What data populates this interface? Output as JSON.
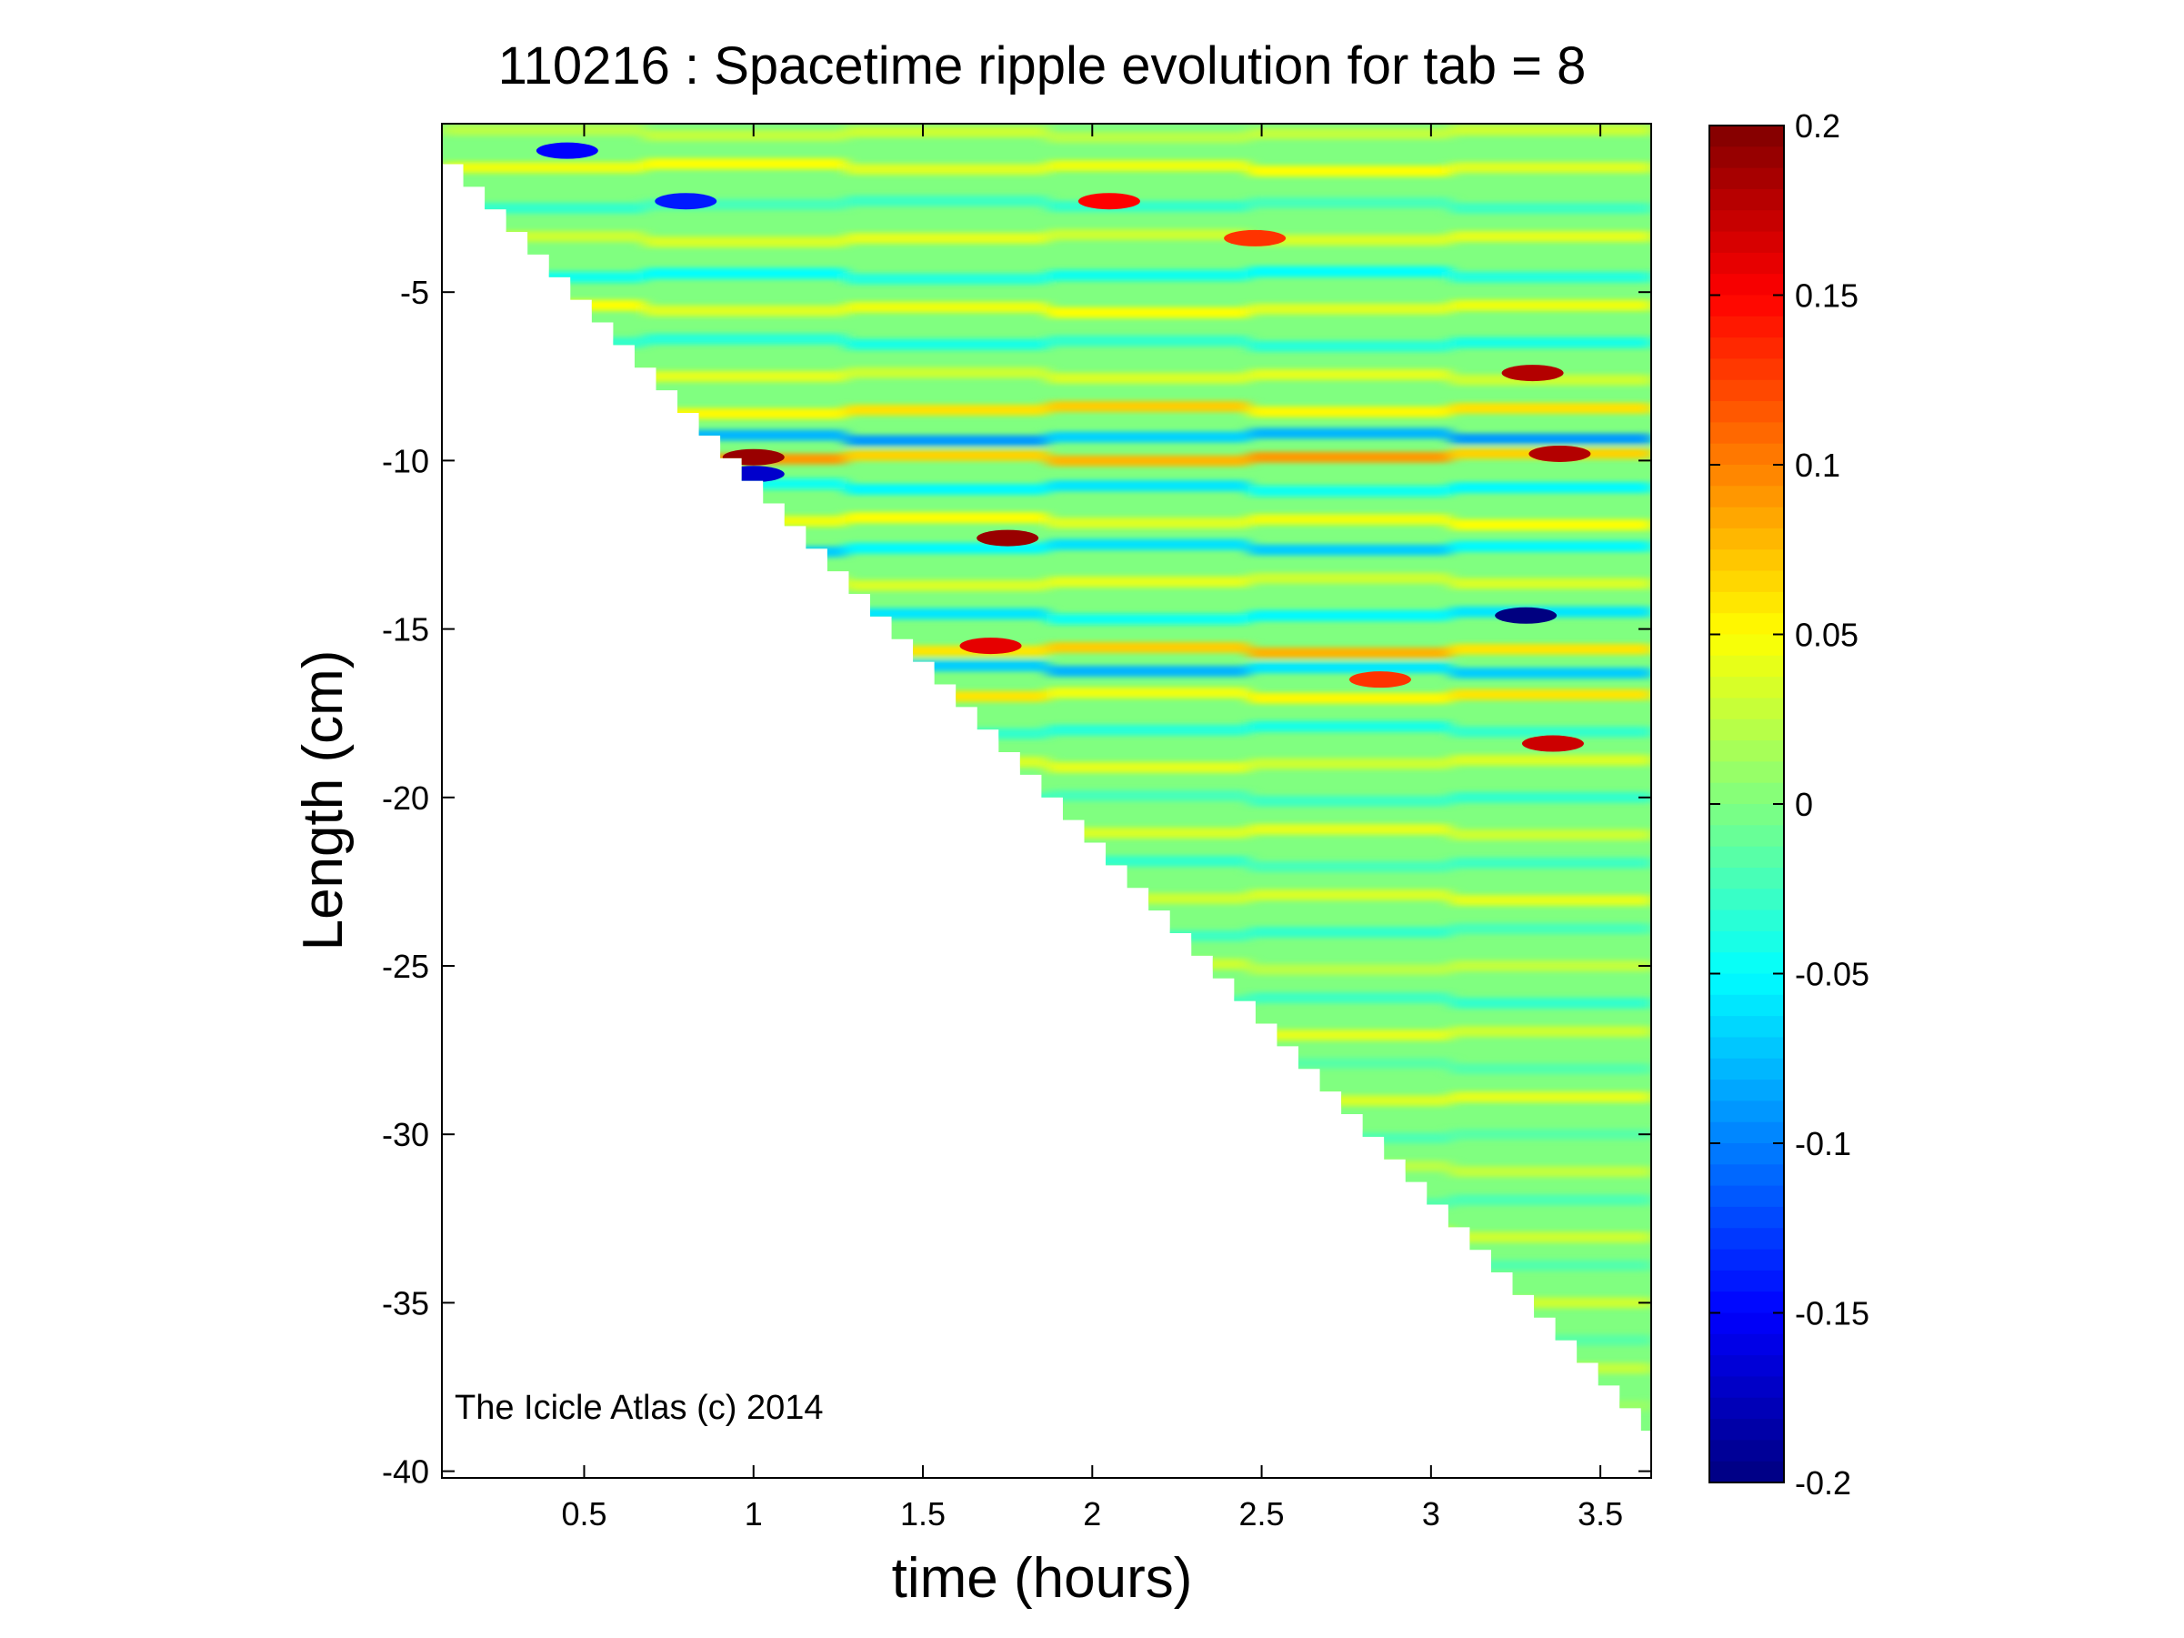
{
  "chart_data": {
    "type": "heatmap",
    "title": "110216 : Spacetime ripple evolution for tab = 8",
    "xlabel": "time (hours)",
    "ylabel": "Length (cm)",
    "xlim": [
      0.08,
      3.65
    ],
    "ylim": [
      -40.2,
      0
    ],
    "x_ticks": [
      0.5,
      1,
      1.5,
      2,
      2.5,
      3,
      3.5
    ],
    "x_tick_labels": [
      "0.5",
      "1",
      "1.5",
      "2",
      "2.5",
      "3",
      "3.5"
    ],
    "y_ticks": [
      -5,
      -10,
      -15,
      -20,
      -25,
      -30,
      -35,
      -40
    ],
    "y_tick_labels": [
      "-5",
      "-10",
      "-15",
      "-20",
      "-25",
      "-30",
      "-35",
      "-40"
    ],
    "colorbar": {
      "colormap": "jet",
      "clim": [
        -0.2,
        0.2
      ],
      "ticks": [
        0.2,
        0.15,
        0.1,
        0.05,
        0,
        -0.05,
        -0.1,
        -0.15,
        -0.2
      ],
      "tick_labels": [
        "0.2",
        "0.15",
        "0.1",
        "0.05",
        "0",
        "-0.05",
        "-0.1",
        "-0.15",
        "-0.2"
      ]
    },
    "data_region": {
      "description_boundary": [
        [
          0.08,
          -1.2
        ],
        [
          3.62,
          -38.8
        ]
      ]
    },
    "horizontal_bands": [
      {
        "y": -0.3,
        "value": 0.03
      },
      {
        "y": -1.3,
        "value": 0.05
      },
      {
        "y": -2.4,
        "value": -0.03
      },
      {
        "y": -3.4,
        "value": 0.04
      },
      {
        "y": -4.5,
        "value": -0.05
      },
      {
        "y": -5.5,
        "value": 0.05
      },
      {
        "y": -6.5,
        "value": -0.04
      },
      {
        "y": -7.5,
        "value": 0.04
      },
      {
        "y": -8.5,
        "value": 0.07
      },
      {
        "y": -9.3,
        "value": -0.09
      },
      {
        "y": -9.9,
        "value": 0.09
      },
      {
        "y": -10.8,
        "value": -0.06
      },
      {
        "y": -11.8,
        "value": 0.05
      },
      {
        "y": -12.6,
        "value": -0.07
      },
      {
        "y": -13.6,
        "value": 0.04
      },
      {
        "y": -14.6,
        "value": -0.06
      },
      {
        "y": -15.6,
        "value": 0.08
      },
      {
        "y": -16.2,
        "value": -0.08
      },
      {
        "y": -17.0,
        "value": 0.06
      },
      {
        "y": -18.0,
        "value": -0.04
      },
      {
        "y": -19.0,
        "value": 0.04
      },
      {
        "y": -20.0,
        "value": -0.03
      },
      {
        "y": -21.0,
        "value": 0.04
      },
      {
        "y": -22.0,
        "value": -0.03
      },
      {
        "y": -23.0,
        "value": 0.04
      },
      {
        "y": -24.0,
        "value": -0.03
      },
      {
        "y": -25.0,
        "value": 0.03
      },
      {
        "y": -26.0,
        "value": -0.03
      },
      {
        "y": -27.0,
        "value": 0.04
      },
      {
        "y": -28.0,
        "value": -0.02
      },
      {
        "y": -29.0,
        "value": 0.04
      },
      {
        "y": -30.0,
        "value": -0.02
      },
      {
        "y": -31.0,
        "value": 0.03
      },
      {
        "y": -32.0,
        "value": -0.02
      },
      {
        "y": -33.0,
        "value": 0.04
      },
      {
        "y": -34.0,
        "value": -0.02
      },
      {
        "y": -35.0,
        "value": 0.03
      },
      {
        "y": -36.0,
        "value": -0.02
      },
      {
        "y": -37.0,
        "value": 0.03
      },
      {
        "y": -38.0,
        "value": 0.01
      }
    ],
    "hotspots": [
      {
        "x": 1.0,
        "y": -9.9,
        "value": 0.19
      },
      {
        "x": 1.0,
        "y": -10.4,
        "value": -0.17
      },
      {
        "x": 1.75,
        "y": -12.3,
        "value": 0.19
      },
      {
        "x": 1.7,
        "y": -15.5,
        "value": 0.16
      },
      {
        "x": 2.05,
        "y": -2.3,
        "value": 0.15
      },
      {
        "x": 2.48,
        "y": -3.4,
        "value": 0.13
      },
      {
        "x": 3.3,
        "y": -7.4,
        "value": 0.18
      },
      {
        "x": 3.38,
        "y": -9.8,
        "value": 0.18
      },
      {
        "x": 3.28,
        "y": -14.6,
        "value": -0.2
      },
      {
        "x": 3.36,
        "y": -18.4,
        "value": 0.17
      },
      {
        "x": 2.85,
        "y": -16.5,
        "value": 0.13
      },
      {
        "x": 0.45,
        "y": -0.8,
        "value": -0.15
      },
      {
        "x": 0.8,
        "y": -2.3,
        "value": -0.14
      }
    ]
  },
  "watermark": "The Icicle Atlas (c) 2014"
}
